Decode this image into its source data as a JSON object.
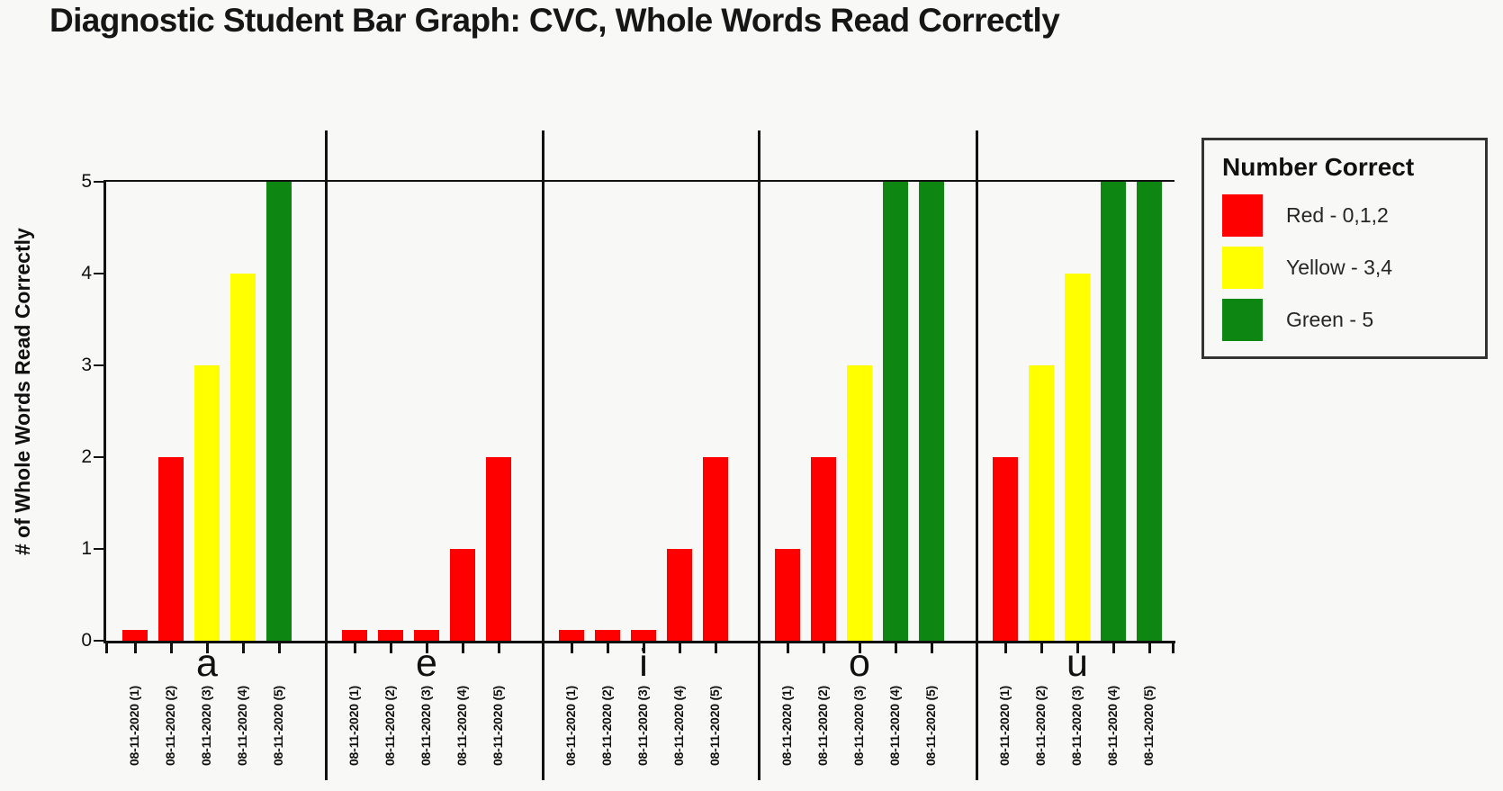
{
  "page": {
    "background": "#f8f8f7"
  },
  "title": "Diagnostic Student Bar Graph: CVC, Whole Words Read Correctly",
  "y_axis_label": "# of Whole Words Read Correctly",
  "legend": {
    "title": "Number Correct",
    "items": [
      {
        "name": "red",
        "label": "Red - 0,1,2",
        "color": "#ff0000"
      },
      {
        "name": "yellow",
        "label": "Yellow - 3,4",
        "color": "#ffff00"
      },
      {
        "name": "green",
        "label": "Green - 5",
        "color": "#0e8612"
      }
    ]
  },
  "chart_data": {
    "type": "bar",
    "title": "Diagnostic Student Bar Graph: CVC, Whole Words Read Correctly",
    "xlabel": "",
    "ylabel": "# of Whole Words Read Correctly",
    "ylim": [
      0,
      5
    ],
    "y_ticks": [
      0,
      1,
      2,
      3,
      4,
      5
    ],
    "grid": "single horizontal line at y=5; vertical divider lines between letter groups",
    "legend_position": "right",
    "legend_title": "Number Correct",
    "color_rules": {
      "red": "score 0,1,2",
      "yellow": "score 3,4",
      "green": "score 5"
    },
    "colors": {
      "red": "#ff0000",
      "yellow": "#ffff00",
      "green": "#0e8612"
    },
    "zero_value_rendering": "bars with value 0 are drawn as tiny red stubs (~0.1 units tall)",
    "bar_labels": [
      "08-11-2020 (1)",
      "08-11-2020 (2)",
      "08-11-2020 (3)",
      "08-11-2020 (4)",
      "08-11-2020 (5)"
    ],
    "groups": [
      {
        "category": "a",
        "values": [
          0,
          2,
          3,
          4,
          5
        ]
      },
      {
        "category": "e",
        "values": [
          0,
          0,
          0,
          1,
          2
        ]
      },
      {
        "category": "i",
        "values": [
          0,
          0,
          0,
          1,
          2
        ]
      },
      {
        "category": "o",
        "values": [
          1,
          2,
          3,
          5,
          5
        ]
      },
      {
        "category": "u",
        "values": [
          2,
          3,
          4,
          5,
          5
        ]
      }
    ]
  }
}
